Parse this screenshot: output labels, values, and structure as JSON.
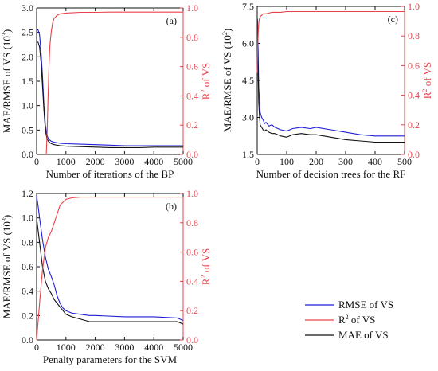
{
  "chart_data": [
    {
      "id": "a",
      "type": "line",
      "panel_label": "(a)",
      "xlabel": "Number of iterations of the BP",
      "ylabel_left": "MAE/RMSE of VS (10",
      "ylabel_left_sup": "3",
      "ylabel_left_end": ")",
      "ylabel_right": "R",
      "ylabel_right_sup": "2",
      "ylabel_right_end": " of VS",
      "xlim": [
        0,
        5000
      ],
      "ylim_left": [
        0,
        3.0
      ],
      "ylim_right": [
        0,
        1.0
      ],
      "xticks": [
        "0",
        "1000",
        "2000",
        "3000",
        "4000",
        "5000"
      ],
      "xtick_values": [
        0,
        1000,
        2000,
        3000,
        4000,
        5000
      ],
      "yticks_left": [
        "0.0",
        "0.5",
        "1.0",
        "1.5",
        "2.0",
        "2.5",
        "3.0"
      ],
      "ytick_left_values": [
        0,
        0.5,
        1.0,
        1.5,
        2.0,
        2.5,
        3.0
      ],
      "yticks_right": [
        "0.0",
        "0.2",
        "0.4",
        "0.6",
        "0.8",
        "1.0"
      ],
      "ytick_right_values": [
        0,
        0.2,
        0.4,
        0.6,
        0.8,
        1.0
      ],
      "series": [
        {
          "key": "rmse",
          "axis": "left",
          "x": [
            0,
            50,
            100,
            150,
            200,
            250,
            300,
            350,
            400,
            500,
            600,
            800,
            1000,
            1500,
            2000,
            2500,
            3000,
            3500,
            4000,
            4500,
            5000
          ],
          "y": [
            2.55,
            2.55,
            2.45,
            2.1,
            1.6,
            1.0,
            0.6,
            0.4,
            0.32,
            0.27,
            0.25,
            0.23,
            0.22,
            0.21,
            0.2,
            0.19,
            0.18,
            0.18,
            0.18,
            0.18,
            0.18
          ]
        },
        {
          "key": "mae",
          "axis": "left",
          "x": [
            0,
            50,
            100,
            150,
            200,
            250,
            300,
            350,
            400,
            500,
            600,
            800,
            1000,
            1500,
            2000,
            2500,
            3000,
            3500,
            4000,
            4500,
            5000
          ],
          "y": [
            2.3,
            2.3,
            2.2,
            1.9,
            1.4,
            0.9,
            0.5,
            0.33,
            0.27,
            0.22,
            0.2,
            0.18,
            0.17,
            0.16,
            0.15,
            0.14,
            0.14,
            0.14,
            0.15,
            0.15,
            0.15
          ]
        },
        {
          "key": "r2",
          "axis": "right",
          "x": [
            330,
            360,
            390,
            420,
            450,
            500,
            550,
            600,
            700,
            800,
            1000,
            1500,
            2000,
            2500,
            3000,
            3500,
            4000,
            4500,
            5000
          ],
          "y": [
            0.0,
            0.15,
            0.4,
            0.6,
            0.74,
            0.84,
            0.9,
            0.93,
            0.95,
            0.96,
            0.965,
            0.97,
            0.97,
            0.972,
            0.972,
            0.972,
            0.972,
            0.972,
            0.972
          ]
        }
      ]
    },
    {
      "id": "b",
      "type": "line",
      "panel_label": "(b)",
      "xlabel": "Penalty parameters for the SVM",
      "ylabel_left": "MAE/RMSE of  VS (10",
      "ylabel_left_sup": "3",
      "ylabel_left_end": ")",
      "ylabel_right": "R",
      "ylabel_right_sup": "2",
      "ylabel_right_end": " of VS",
      "xlim": [
        0,
        5000
      ],
      "ylim_left": [
        0,
        1.2
      ],
      "ylim_right": [
        0,
        1.0
      ],
      "xticks": [
        "0",
        "1000",
        "2000",
        "3000",
        "4000",
        "5000"
      ],
      "xtick_values": [
        0,
        1000,
        2000,
        3000,
        4000,
        5000
      ],
      "yticks_left": [
        "0.0",
        "0.2",
        "0.4",
        "0.6",
        "0.8",
        "1.0",
        "1.2"
      ],
      "ytick_left_values": [
        0,
        0.2,
        0.4,
        0.6,
        0.8,
        1.0,
        1.2
      ],
      "yticks_right": [
        "0.0",
        "0.2",
        "0.4",
        "0.6",
        "0.8",
        "1.0"
      ],
      "ytick_right_values": [
        0,
        0.2,
        0.4,
        0.6,
        0.8,
        1.0
      ],
      "series": [
        {
          "key": "rmse",
          "axis": "left",
          "x": [
            0,
            50,
            100,
            200,
            300,
            400,
            500,
            600,
            700,
            800,
            900,
            1000,
            1200,
            1500,
            1800,
            2000,
            3000,
            4000,
            4800,
            5000
          ],
          "y": [
            1.18,
            1.1,
            1.0,
            0.82,
            0.68,
            0.58,
            0.52,
            0.45,
            0.36,
            0.3,
            0.26,
            0.24,
            0.22,
            0.21,
            0.2,
            0.2,
            0.19,
            0.19,
            0.18,
            0.16
          ]
        },
        {
          "key": "mae",
          "axis": "left",
          "x": [
            0,
            50,
            100,
            200,
            300,
            400,
            500,
            600,
            700,
            800,
            900,
            1000,
            1200,
            1500,
            1800,
            2000,
            3000,
            4000,
            4800,
            5000
          ],
          "y": [
            1.0,
            0.9,
            0.8,
            0.6,
            0.48,
            0.42,
            0.38,
            0.33,
            0.3,
            0.27,
            0.24,
            0.21,
            0.19,
            0.17,
            0.15,
            0.15,
            0.15,
            0.15,
            0.15,
            0.13
          ]
        },
        {
          "key": "r2",
          "axis": "right",
          "x": [
            0,
            100,
            200,
            300,
            400,
            500,
            600,
            700,
            800,
            900,
            1000,
            1200,
            1500,
            2000,
            3000,
            4000,
            5000
          ],
          "y": [
            0.0,
            0.25,
            0.48,
            0.63,
            0.7,
            0.74,
            0.8,
            0.86,
            0.92,
            0.94,
            0.96,
            0.97,
            0.975,
            0.975,
            0.975,
            0.975,
            0.975
          ]
        }
      ]
    },
    {
      "id": "c",
      "type": "line",
      "panel_label": "(c)",
      "xlabel": "Number of decision trees for the RF",
      "ylabel_left": "MAE/RMSE of VS (10",
      "ylabel_left_sup": "2",
      "ylabel_left_end": ")",
      "ylabel_right": "R",
      "ylabel_right_sup": "2",
      "ylabel_right_end": " of VS",
      "xlim": [
        0,
        500
      ],
      "ylim_left": [
        1.5,
        7.5
      ],
      "ylim_right": [
        0,
        1.0
      ],
      "xticks": [
        "0",
        "100",
        "200",
        "300",
        "400",
        "500"
      ],
      "xtick_values": [
        0,
        100,
        200,
        300,
        400,
        500
      ],
      "yticks_left": [
        "1.5",
        "3.0",
        "4.5",
        "6.0",
        "7.5"
      ],
      "ytick_left_values": [
        1.5,
        3.0,
        4.5,
        6.0,
        7.5
      ],
      "yticks_right": [
        "0.0",
        "0.2",
        "0.4",
        "0.6",
        "0.8",
        "1.0"
      ],
      "ytick_right_values": [
        0,
        0.2,
        0.4,
        0.6,
        0.8,
        1.0
      ],
      "series": [
        {
          "key": "rmse",
          "axis": "left",
          "x": [
            1,
            3,
            5,
            8,
            10,
            15,
            20,
            25,
            30,
            40,
            50,
            60,
            70,
            80,
            100,
            120,
            150,
            180,
            200,
            250,
            300,
            350,
            400,
            450,
            500
          ],
          "y": [
            7.0,
            5.8,
            4.2,
            3.6,
            3.2,
            3.0,
            2.9,
            2.75,
            2.8,
            2.65,
            2.7,
            2.6,
            2.55,
            2.5,
            2.45,
            2.55,
            2.6,
            2.55,
            2.6,
            2.5,
            2.4,
            2.3,
            2.25,
            2.25,
            2.25
          ]
        },
        {
          "key": "mae",
          "axis": "left",
          "x": [
            1,
            3,
            5,
            8,
            10,
            15,
            20,
            25,
            30,
            40,
            50,
            60,
            70,
            80,
            100,
            120,
            150,
            180,
            200,
            250,
            300,
            350,
            400,
            450,
            500
          ],
          "y": [
            6.0,
            5.0,
            3.6,
            3.0,
            2.7,
            2.6,
            2.5,
            2.45,
            2.5,
            2.4,
            2.35,
            2.35,
            2.3,
            2.25,
            2.2,
            2.3,
            2.35,
            2.3,
            2.3,
            2.2,
            2.1,
            2.05,
            2.0,
            2.0,
            2.0
          ]
        },
        {
          "key": "r2",
          "axis": "right",
          "x": [
            0,
            2,
            4,
            6,
            8,
            10,
            15,
            20,
            30,
            40,
            50,
            80,
            100,
            150,
            200,
            300,
            400,
            500
          ],
          "y": [
            0.55,
            0.75,
            0.85,
            0.9,
            0.92,
            0.93,
            0.94,
            0.95,
            0.95,
            0.955,
            0.96,
            0.96,
            0.965,
            0.965,
            0.965,
            0.965,
            0.965,
            0.965
          ]
        }
      ]
    }
  ],
  "legend": {
    "items": [
      {
        "key": "rmse",
        "label": "RMSE of  VS",
        "color": "#1f1fd6"
      },
      {
        "key": "r2",
        "label": "R",
        "sup": "2",
        "label_end": " of VS",
        "color": "#e8434b"
      },
      {
        "key": "mae",
        "label": "MAE of VS",
        "color": "#111111"
      }
    ]
  },
  "colors": {
    "rmse": "#1f1fd6",
    "mae": "#111111",
    "r2": "#e8434b",
    "axis_left": "#111111",
    "axis_right": "#e8434b"
  }
}
